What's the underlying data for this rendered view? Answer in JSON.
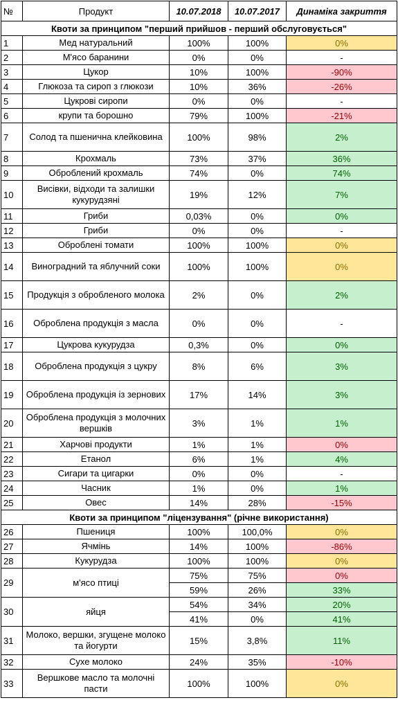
{
  "header": {
    "num": "№",
    "product": "Продукт",
    "date2018": "10.07.2018",
    "date2017": "10.07.2017",
    "dynamics": "Динаміка закриття"
  },
  "colors": {
    "yellow_fill": "#ffe699",
    "red_fill": "#ffc7ce",
    "green_fill": "#c6efce"
  },
  "section1": "Квоти за принципом \"перший прийшов - перший обслуговується\"",
  "section2": "Квоти за принципом \"ліцензування\" (річне використання)",
  "rows1": [
    {
      "n": "1",
      "product": "Мед натуральний",
      "v2018": "100%",
      "v2017": "100%",
      "dyn": "0%",
      "status": "yellow",
      "h": 21
    },
    {
      "n": "2",
      "product": "М'ясо баранини",
      "v2018": "0%",
      "v2017": "0%",
      "dyn": "-",
      "status": "white",
      "h": 21
    },
    {
      "n": "3",
      "product": "Цукор",
      "v2018": "10%",
      "v2017": "100%",
      "dyn": "-90%",
      "status": "red",
      "h": 21
    },
    {
      "n": "4",
      "product": "Глюкоза та сироп з глюкози",
      "v2018": "10%",
      "v2017": "36%",
      "dyn": "-26%",
      "status": "red",
      "h": 21
    },
    {
      "n": "5",
      "product": "Цукрові сиропи",
      "v2018": "0%",
      "v2017": "0%",
      "dyn": "-",
      "status": "white",
      "h": 21
    },
    {
      "n": "6",
      "product": "крупи та борошно",
      "v2018": "79%",
      "v2017": "100%",
      "dyn": "-21%",
      "status": "red",
      "h": 21
    },
    {
      "n": "7",
      "product": "Солод та пшенична клейковина",
      "v2018": "100%",
      "v2017": "98%",
      "dyn": "2%",
      "status": "green",
      "h": 41
    },
    {
      "n": "8",
      "product": "Крохмаль",
      "v2018": "73%",
      "v2017": "37%",
      "dyn": "36%",
      "status": "green",
      "h": 21
    },
    {
      "n": "9",
      "product": "Оброблений крохмаль",
      "v2018": "74%",
      "v2017": "0%",
      "dyn": "74%",
      "status": "green",
      "h": 21
    },
    {
      "n": "10",
      "product": "Висівки, відходи та залишки кукурудзяні",
      "v2018": "19%",
      "v2017": "12%",
      "dyn": "7%",
      "status": "green",
      "h": 41
    },
    {
      "n": "11",
      "product": "Гриби",
      "v2018": "0,03%",
      "v2017": "0%",
      "dyn": "0%",
      "status": "green",
      "h": 21
    },
    {
      "n": "12",
      "product": "Гриби",
      "v2018": "0%",
      "v2017": "0%",
      "dyn": "-",
      "status": "white",
      "h": 21
    },
    {
      "n": "13",
      "product": "Оброблені томати",
      "v2018": "100%",
      "v2017": "100%",
      "dyn": "0%",
      "status": "yellow",
      "h": 21
    },
    {
      "n": "14",
      "product": "Виноградний та яблучний соки",
      "v2018": "100%",
      "v2017": "100%",
      "dyn": "0%",
      "status": "yellow",
      "h": 41
    },
    {
      "n": "15",
      "product": "Продукція з обробленого молока",
      "v2018": "2%",
      "v2017": "0%",
      "dyn": "2%",
      "status": "green",
      "h": 41
    },
    {
      "n": "16",
      "product": "Оброблена продукція з масла",
      "v2018": "0%",
      "v2017": "0%",
      "dyn": "-",
      "status": "white",
      "h": 41
    },
    {
      "n": "17",
      "product": "Цукрова кукурудза",
      "v2018": "0,3%",
      "v2017": "0%",
      "dyn": "0%",
      "status": "green",
      "h": 21
    },
    {
      "n": "18",
      "product": "Оброблена продукція з цукру",
      "v2018": "8%",
      "v2017": "6%",
      "dyn": "3%",
      "status": "green",
      "h": 41
    },
    {
      "n": "19",
      "product": "Оброблена продукція із зернових",
      "v2018": "17%",
      "v2017": "14%",
      "dyn": "3%",
      "status": "green",
      "h": 41
    },
    {
      "n": "20",
      "product": "Оброблена продукція з молочних вершків",
      "v2018": "3%",
      "v2017": "1%",
      "dyn": "1%",
      "status": "green",
      "h": 41
    },
    {
      "n": "21",
      "product": "Харчові продукти",
      "v2018": "1%",
      "v2017": "1%",
      "dyn": "0%",
      "status": "red",
      "h": 21
    },
    {
      "n": "22",
      "product": "Етанол",
      "v2018": "6%",
      "v2017": "1%",
      "dyn": "4%",
      "status": "green",
      "h": 21
    },
    {
      "n": "23",
      "product": "Сигари та цигарки",
      "v2018": "0%",
      "v2017": "0%",
      "dyn": "-",
      "status": "white",
      "h": 21
    },
    {
      "n": "24",
      "product": "Часник",
      "v2018": "1%",
      "v2017": "0%",
      "dyn": "1%",
      "status": "green",
      "h": 21
    },
    {
      "n": "25",
      "product": "Овес",
      "v2018": "14%",
      "v2017": "28%",
      "dyn": "-15%",
      "status": "red",
      "h": 21
    }
  ],
  "rows2": [
    {
      "n": "26",
      "product": "Пшениця",
      "sub": [
        {
          "v2018": "100%",
          "v2017": "100,0%",
          "dyn": "0%",
          "status": "yellow"
        }
      ],
      "h": 21
    },
    {
      "n": "27",
      "product": "Ячмінь",
      "sub": [
        {
          "v2018": "14%",
          "v2017": "100%",
          "dyn": "-86%",
          "status": "red"
        }
      ],
      "h": 21
    },
    {
      "n": "28",
      "product": "Кукурудза",
      "sub": [
        {
          "v2018": "100%",
          "v2017": "100%",
          "dyn": "0%",
          "status": "yellow"
        }
      ],
      "h": 21
    },
    {
      "n": "29",
      "product": "м'ясо птиці",
      "sub": [
        {
          "v2018": "75%",
          "v2017": "75%",
          "dyn": "0%",
          "status": "red"
        },
        {
          "v2018": "59%",
          "v2017": "26%",
          "dyn": "33%",
          "status": "green"
        }
      ],
      "h": 21
    },
    {
      "n": "30",
      "product": "яйця",
      "sub": [
        {
          "v2018": "54%",
          "v2017": "34%",
          "dyn": "20%",
          "status": "green"
        },
        {
          "v2018": "41%",
          "v2017": "0%",
          "dyn": "41%",
          "status": "green"
        }
      ],
      "h": 21
    },
    {
      "n": "31",
      "product": "Молоко, вершки, згущене молоко та йогурти",
      "sub": [
        {
          "v2018": "15%",
          "v2017": "3,8%",
          "dyn": "11%",
          "status": "green"
        }
      ],
      "h": 41
    },
    {
      "n": "32",
      "product": "Сухе молоко",
      "sub": [
        {
          "v2018": "24%",
          "v2017": "35%",
          "dyn": "-10%",
          "status": "red"
        }
      ],
      "h": 21
    },
    {
      "n": "33",
      "product": "Вершкове масло та молочні пасти",
      "sub": [
        {
          "v2018": "100%",
          "v2017": "100%",
          "dyn": "0%",
          "status": "yellow"
        }
      ],
      "h": 41
    }
  ]
}
